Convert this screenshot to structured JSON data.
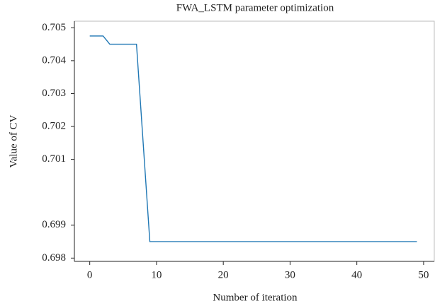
{
  "chart_data": {
    "type": "line",
    "title": "FWA_LSTM parameter optimization",
    "x_label": "Number of iteration",
    "y_label": "Value of CV",
    "x": [
      0,
      1,
      2,
      3,
      4,
      5,
      6,
      7,
      8,
      9,
      10,
      11,
      12,
      13,
      14,
      15,
      16,
      17,
      18,
      19,
      20,
      21,
      22,
      23,
      24,
      25,
      26,
      27,
      28,
      29,
      30,
      31,
      32,
      33,
      34,
      35,
      36,
      37,
      38,
      39,
      40,
      41,
      42,
      43,
      44,
      45,
      46,
      47,
      48,
      49
    ],
    "series": [
      {
        "color": "#1f77b4",
        "values": [
          0.70475,
          0.70475,
          0.70475,
          0.7045,
          0.7045,
          0.7045,
          0.7045,
          0.7045,
          0.7015,
          0.6985,
          0.6985,
          0.6985,
          0.6985,
          0.6985,
          0.6985,
          0.6985,
          0.6985,
          0.6985,
          0.6985,
          0.6985,
          0.6985,
          0.6985,
          0.6985,
          0.6985,
          0.6985,
          0.6985,
          0.6985,
          0.6985,
          0.6985,
          0.6985,
          0.6985,
          0.6985,
          0.6985,
          0.6985,
          0.6985,
          0.6985,
          0.6985,
          0.6985,
          0.6985,
          0.6985,
          0.6985,
          0.6985,
          0.6985,
          0.6985,
          0.6985,
          0.6985,
          0.6985,
          0.6985,
          0.6985,
          0.6985
        ]
      }
    ],
    "xlim": [
      -2.3,
      51.6
    ],
    "xticks": [
      0,
      10,
      20,
      30,
      40,
      50
    ],
    "ylim": [
      0.6979,
      0.7052
    ],
    "yticks": [
      0.705,
      0.704,
      0.703,
      0.702,
      0.701,
      0.699,
      0.698
    ]
  }
}
